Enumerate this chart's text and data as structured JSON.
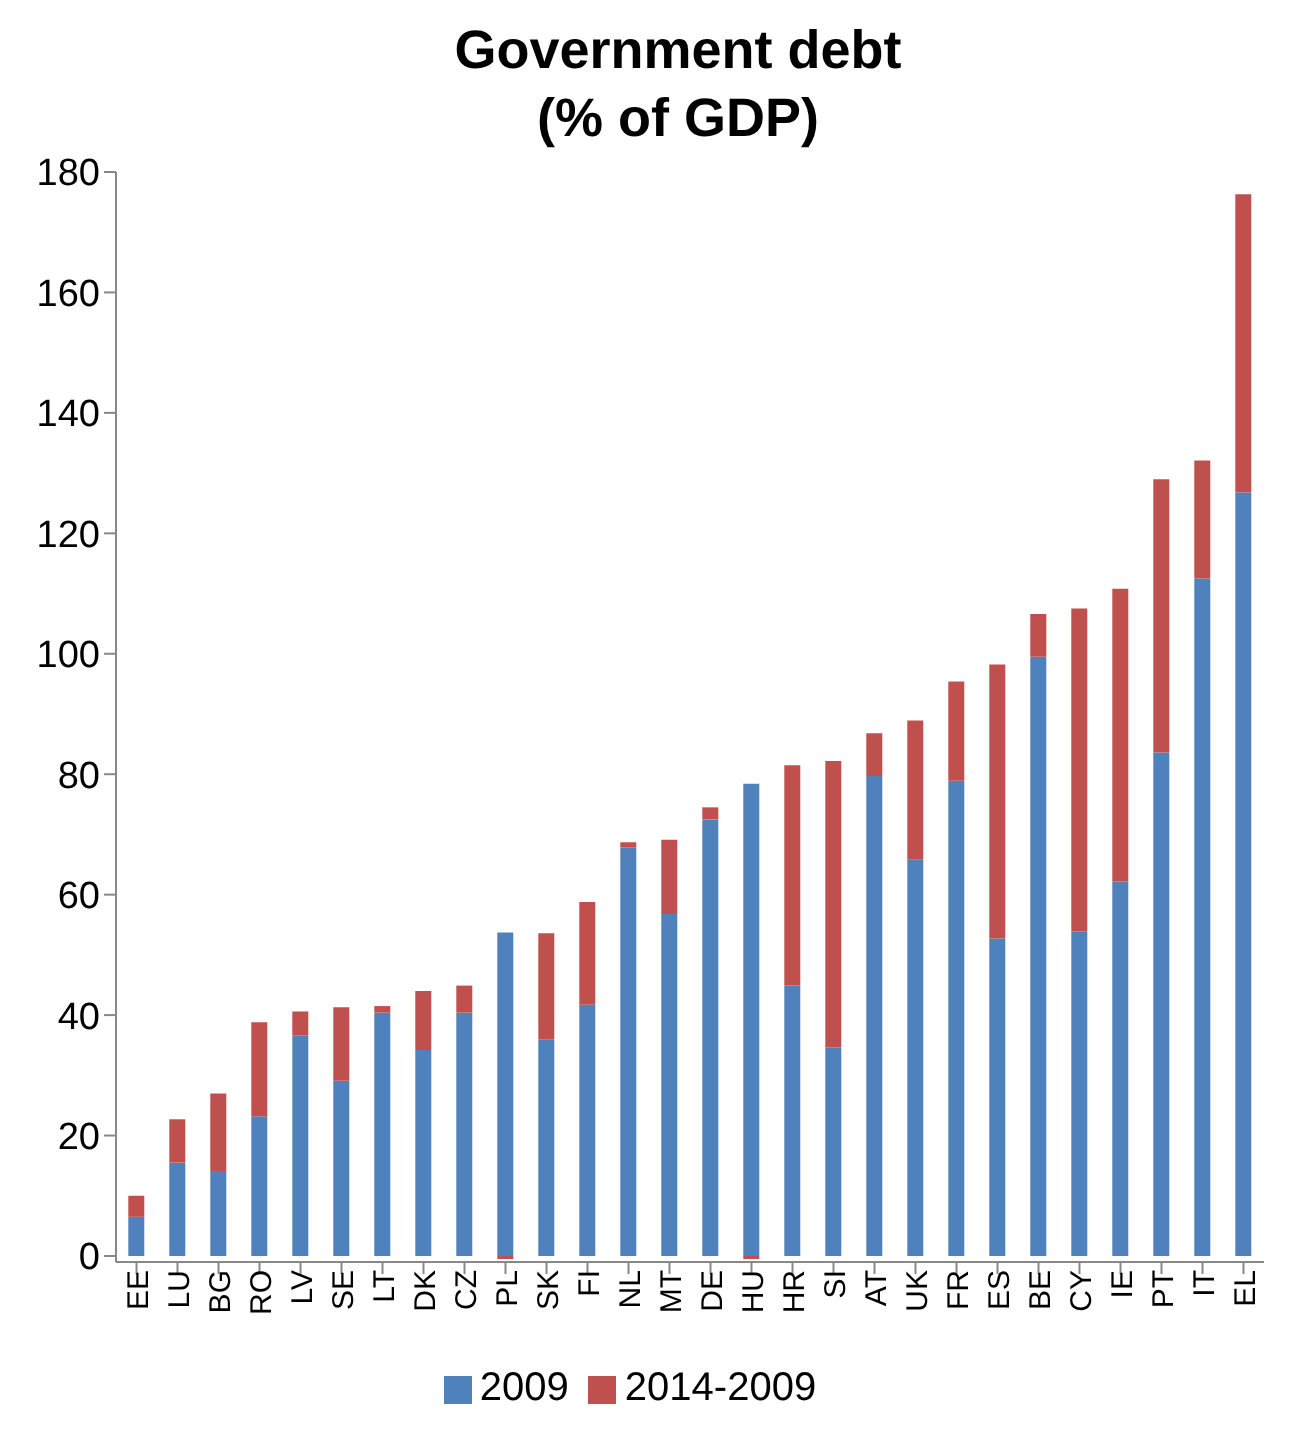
{
  "chart_data": {
    "type": "bar",
    "title": "Government debt\n(% of GDP)",
    "stacked": true,
    "legend": "bottom",
    "grid": false,
    "categories": [
      "EE",
      "LU",
      "BG",
      "RO",
      "LV",
      "SE",
      "LT",
      "DK",
      "CZ",
      "PL",
      "SK",
      "FI",
      "NL",
      "MT",
      "DE",
      "HU",
      "HR",
      "SI",
      "AT",
      "UK",
      "FR",
      "ES",
      "BE",
      "CY",
      "IE",
      "PT",
      "IT",
      "EL"
    ],
    "series": [
      {
        "name": "2009",
        "color": "#4f81bd",
        "values": [
          6.5,
          15.5,
          14.1,
          23.2,
          36.6,
          29.1,
          40.4,
          34.2,
          40.4,
          53.7,
          36.0,
          41.7,
          67.8,
          56.8,
          72.5,
          78.4,
          44.9,
          34.6,
          79.7,
          65.8,
          78.9,
          52.7,
          99.5,
          53.9,
          62.2,
          83.6,
          112.5,
          126.8
        ]
      },
      {
        "name": "2014-2009",
        "color": "#c0504d",
        "values": [
          3.5,
          7.2,
          12.9,
          15.6,
          4.0,
          12.2,
          1.1,
          9.8,
          4.5,
          -0.5,
          17.6,
          17.1,
          0.9,
          12.3,
          2.0,
          -0.5,
          36.6,
          47.6,
          7.1,
          23.1,
          16.5,
          45.5,
          7.1,
          53.6,
          48.6,
          45.4,
          19.6,
          49.5
        ]
      }
    ],
    "ylim": [
      -1,
      180
    ],
    "yticks": [
      0,
      20,
      40,
      60,
      80,
      100,
      120,
      140,
      160,
      180
    ]
  }
}
